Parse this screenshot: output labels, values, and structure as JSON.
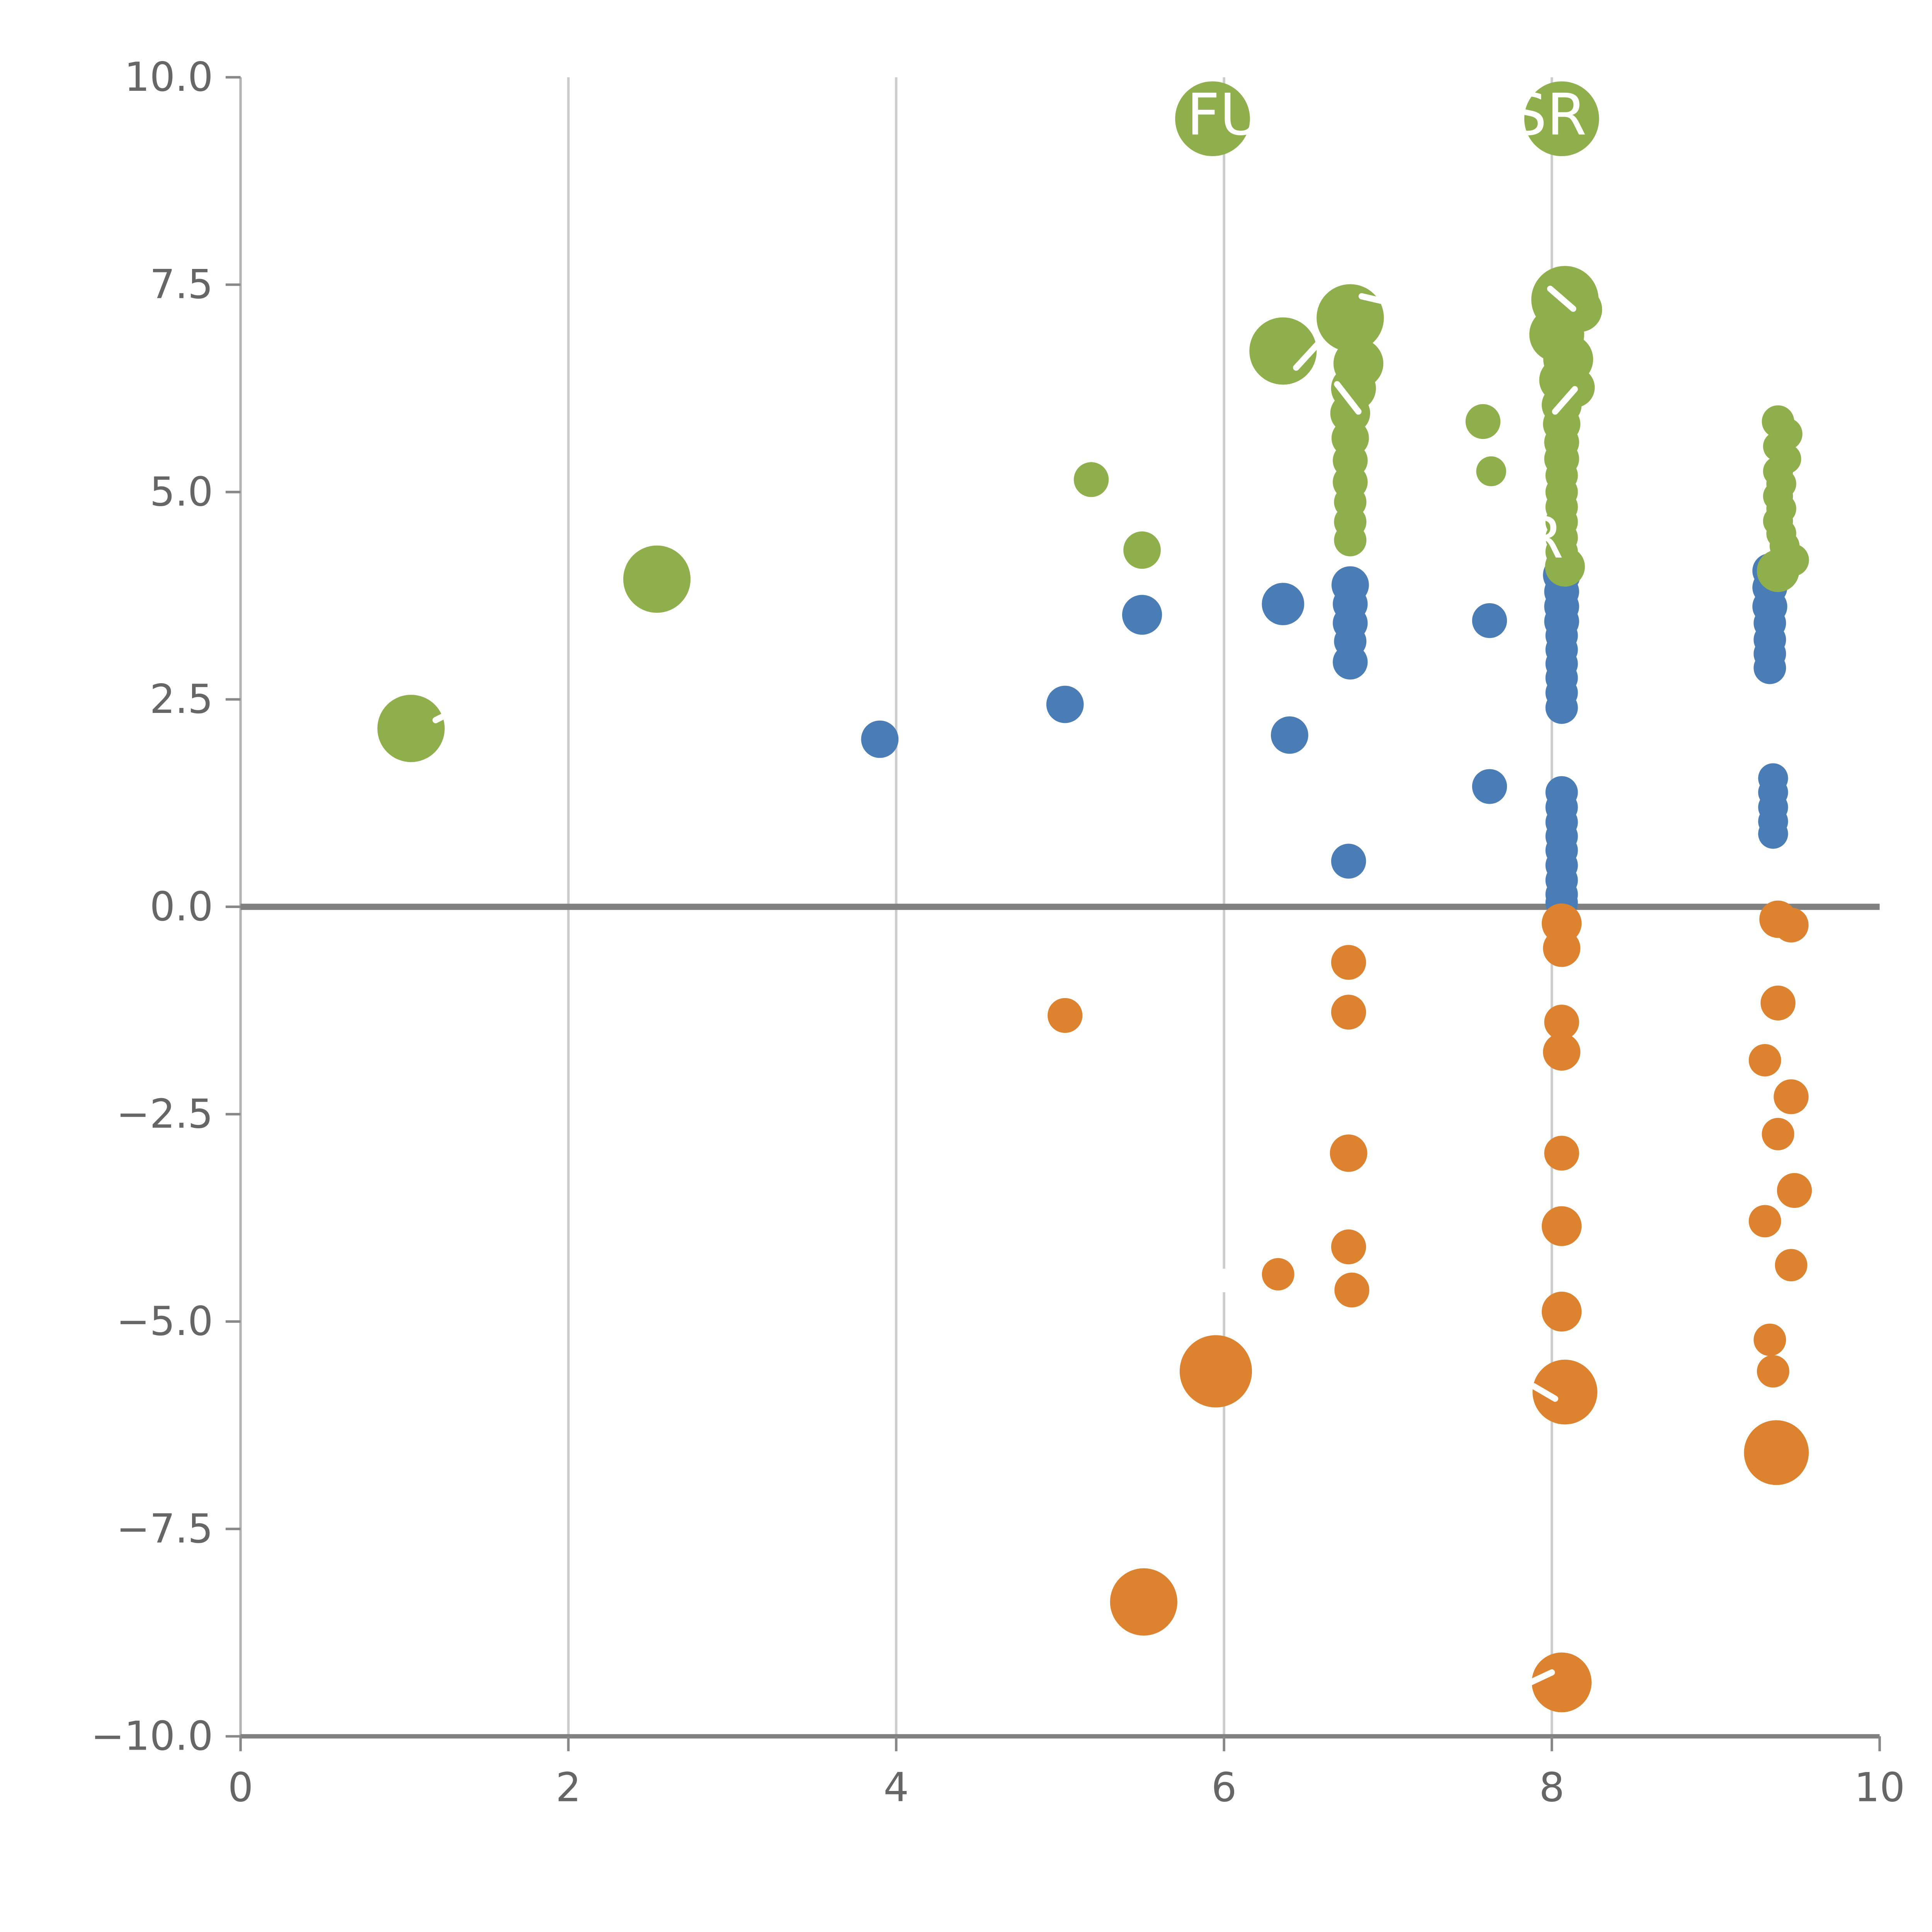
{
  "page": {
    "background": "#ffffff"
  },
  "chart_data": {
    "type": "scatter",
    "title": "",
    "xlabel": "",
    "ylabel": "",
    "xlim": [
      0,
      10
    ],
    "ylim": [
      -10,
      10
    ],
    "xticks": [
      0,
      2,
      4,
      6,
      8,
      10
    ],
    "xtick_labels": [
      "0",
      "2",
      "4",
      "6",
      "8",
      "10"
    ],
    "yticks": [
      -10,
      -7.5,
      -5,
      -2.5,
      0,
      2.5,
      5,
      7.5,
      10
    ],
    "ytick_labels": [
      "−10.0",
      "−7.5",
      "−5.0",
      "−2.5",
      "0.0",
      "2.5",
      "5.0",
      "7.5",
      "10.0"
    ],
    "grid_x": [
      2,
      4,
      6,
      8
    ],
    "zero_line_y": 0,
    "legend": "none",
    "colors": {
      "green": "#8faf4c",
      "blue": "#4a7cb5",
      "orange": "#dd8330",
      "grid": "#cccccc",
      "left_spine": "#b3b3b3",
      "bottom_spine": "#808080",
      "zero_line": "#808080",
      "tick": "#888888",
      "tick_text": "#666666",
      "bubble_label": "#ffffff"
    },
    "series": [
      {
        "name": "blue",
        "color_key": "blue",
        "points": [
          {
            "x": 3.9,
            "y": 2.02,
            "r": 15
          },
          {
            "x": 5.03,
            "y": 2.44,
            "r": 15
          },
          {
            "x": 5.5,
            "y": 3.52,
            "r": 16
          },
          {
            "x": 6.36,
            "y": 3.65,
            "r": 17
          },
          {
            "x": 6.4,
            "y": 2.07,
            "r": 15
          },
          {
            "x": 6.77,
            "y": 3.88,
            "r": 15
          },
          {
            "x": 6.77,
            "y": 3.65,
            "r": 14
          },
          {
            "x": 6.77,
            "y": 3.42,
            "r": 14
          },
          {
            "x": 6.77,
            "y": 3.2,
            "r": 13
          },
          {
            "x": 6.77,
            "y": 2.95,
            "r": 14
          },
          {
            "x": 6.76,
            "y": 0.55,
            "r": 14
          },
          {
            "x": 7.62,
            "y": 3.45,
            "r": 14
          },
          {
            "x": 7.62,
            "y": 1.45,
            "r": 14
          },
          {
            "x": 8.06,
            "y": 4.0,
            "r": 15
          },
          {
            "x": 8.06,
            "y": 3.8,
            "r": 14
          },
          {
            "x": 8.06,
            "y": 3.62,
            "r": 14
          },
          {
            "x": 8.06,
            "y": 3.44,
            "r": 14
          },
          {
            "x": 8.06,
            "y": 3.27,
            "r": 13
          },
          {
            "x": 8.06,
            "y": 3.1,
            "r": 13
          },
          {
            "x": 8.06,
            "y": 2.93,
            "r": 13
          },
          {
            "x": 8.06,
            "y": 2.76,
            "r": 13
          },
          {
            "x": 8.06,
            "y": 2.58,
            "r": 13
          },
          {
            "x": 8.06,
            "y": 2.4,
            "r": 13
          },
          {
            "x": 8.06,
            "y": 1.38,
            "r": 13
          },
          {
            "x": 8.06,
            "y": 1.2,
            "r": 13
          },
          {
            "x": 8.06,
            "y": 1.02,
            "r": 13
          },
          {
            "x": 8.06,
            "y": 0.85,
            "r": 13
          },
          {
            "x": 8.06,
            "y": 0.68,
            "r": 13
          },
          {
            "x": 8.06,
            "y": 0.5,
            "r": 13
          },
          {
            "x": 8.06,
            "y": 0.32,
            "r": 13
          },
          {
            "x": 8.06,
            "y": 0.15,
            "r": 13
          },
          {
            "x": 8.06,
            "y": 0.05,
            "r": 13
          },
          {
            "x": 9.33,
            "y": 4.05,
            "r": 14
          },
          {
            "x": 9.33,
            "y": 3.85,
            "r": 14
          },
          {
            "x": 9.33,
            "y": 3.62,
            "r": 14
          },
          {
            "x": 9.33,
            "y": 3.42,
            "r": 13
          },
          {
            "x": 9.33,
            "y": 3.22,
            "r": 13
          },
          {
            "x": 9.33,
            "y": 3.05,
            "r": 13
          },
          {
            "x": 9.33,
            "y": 2.88,
            "r": 13
          },
          {
            "x": 9.35,
            "y": 1.55,
            "r": 12
          },
          {
            "x": 9.35,
            "y": 1.38,
            "r": 12
          },
          {
            "x": 9.35,
            "y": 1.2,
            "r": 12
          },
          {
            "x": 9.35,
            "y": 1.03,
            "r": 12
          },
          {
            "x": 9.35,
            "y": 0.88,
            "r": 12
          }
        ]
      },
      {
        "name": "orange",
        "color_key": "orange",
        "points": [
          {
            "x": 5.03,
            "y": -1.31,
            "r": 14
          },
          {
            "x": 5.51,
            "y": -8.38,
            "r": 27
          },
          {
            "x": 5.95,
            "y": -5.6,
            "r": 29
          },
          {
            "x": 6.33,
            "y": -4.43,
            "r": 13
          },
          {
            "x": 6.76,
            "y": -0.67,
            "r": 14
          },
          {
            "x": 6.76,
            "y": -1.27,
            "r": 14
          },
          {
            "x": 6.76,
            "y": -2.97,
            "r": 15
          },
          {
            "x": 6.76,
            "y": -4.1,
            "r": 14
          },
          {
            "x": 6.78,
            "y": -4.62,
            "r": 14
          },
          {
            "x": 8.06,
            "y": -0.2,
            "r": 16
          },
          {
            "x": 8.06,
            "y": -0.5,
            "r": 15
          },
          {
            "x": 8.06,
            "y": -1.39,
            "r": 14
          },
          {
            "x": 8.06,
            "y": -1.75,
            "r": 15
          },
          {
            "x": 8.06,
            "y": -2.97,
            "r": 14
          },
          {
            "x": 8.06,
            "y": -3.85,
            "r": 16
          },
          {
            "x": 8.06,
            "y": -4.88,
            "r": 16
          },
          {
            "x": 8.08,
            "y": -5.85,
            "r": 26
          },
          {
            "x": 8.06,
            "y": -9.35,
            "r": 24
          },
          {
            "x": 9.38,
            "y": -0.15,
            "r": 15
          },
          {
            "x": 9.46,
            "y": -0.22,
            "r": 14
          },
          {
            "x": 9.38,
            "y": -1.16,
            "r": 14
          },
          {
            "x": 9.3,
            "y": -1.85,
            "r": 13
          },
          {
            "x": 9.46,
            "y": -2.29,
            "r": 14
          },
          {
            "x": 9.38,
            "y": -2.74,
            "r": 13
          },
          {
            "x": 9.48,
            "y": -3.42,
            "r": 14
          },
          {
            "x": 9.3,
            "y": -3.79,
            "r": 13
          },
          {
            "x": 9.46,
            "y": -4.32,
            "r": 13
          },
          {
            "x": 9.33,
            "y": -5.22,
            "r": 13
          },
          {
            "x": 9.35,
            "y": -5.6,
            "r": 13
          },
          {
            "x": 9.37,
            "y": -6.58,
            "r": 26
          }
        ]
      },
      {
        "name": "green",
        "color_key": "green",
        "points": [
          {
            "x": 1.04,
            "y": 2.15,
            "r": 27
          },
          {
            "x": 2.54,
            "y": 3.95,
            "r": 27
          },
          {
            "x": 5.19,
            "y": 5.15,
            "r": 14
          },
          {
            "x": 5.5,
            "y": 4.3,
            "r": 15
          },
          {
            "x": 5.93,
            "y": 9.5,
            "r": 30
          },
          {
            "x": 6.36,
            "y": 6.7,
            "r": 27
          },
          {
            "x": 6.77,
            "y": 7.1,
            "r": 27
          },
          {
            "x": 6.82,
            "y": 6.55,
            "r": 20
          },
          {
            "x": 6.79,
            "y": 6.25,
            "r": 18
          },
          {
            "x": 6.77,
            "y": 5.95,
            "r": 16
          },
          {
            "x": 6.77,
            "y": 5.65,
            "r": 15
          },
          {
            "x": 6.77,
            "y": 5.38,
            "r": 14
          },
          {
            "x": 6.77,
            "y": 5.12,
            "r": 14
          },
          {
            "x": 6.77,
            "y": 4.88,
            "r": 13
          },
          {
            "x": 6.77,
            "y": 4.64,
            "r": 13
          },
          {
            "x": 6.77,
            "y": 4.42,
            "r": 13
          },
          {
            "x": 7.58,
            "y": 5.85,
            "r": 14
          },
          {
            "x": 7.63,
            "y": 5.25,
            "r": 12
          },
          {
            "x": 8.06,
            "y": 9.5,
            "r": 30
          },
          {
            "x": 8.08,
            "y": 7.32,
            "r": 27
          },
          {
            "x": 8.17,
            "y": 7.2,
            "r": 18
          },
          {
            "x": 8.03,
            "y": 6.9,
            "r": 22
          },
          {
            "x": 8.1,
            "y": 6.6,
            "r": 20
          },
          {
            "x": 8.06,
            "y": 6.35,
            "r": 18
          },
          {
            "x": 8.14,
            "y": 6.26,
            "r": 16
          },
          {
            "x": 8.06,
            "y": 6.05,
            "r": 16
          },
          {
            "x": 8.06,
            "y": 5.82,
            "r": 15
          },
          {
            "x": 8.06,
            "y": 5.6,
            "r": 14
          },
          {
            "x": 8.06,
            "y": 5.4,
            "r": 14
          },
          {
            "x": 8.06,
            "y": 5.2,
            "r": 13
          },
          {
            "x": 8.06,
            "y": 5.0,
            "r": 13
          },
          {
            "x": 8.06,
            "y": 4.82,
            "r": 13
          },
          {
            "x": 8.06,
            "y": 4.64,
            "r": 13
          },
          {
            "x": 8.06,
            "y": 4.45,
            "r": 13
          },
          {
            "x": 8.06,
            "y": 4.28,
            "r": 13
          },
          {
            "x": 8.08,
            "y": 4.1,
            "r": 16
          },
          {
            "x": 9.38,
            "y": 5.85,
            "r": 13
          },
          {
            "x": 9.43,
            "y": 5.7,
            "r": 13
          },
          {
            "x": 9.38,
            "y": 5.55,
            "r": 12
          },
          {
            "x": 9.43,
            "y": 5.4,
            "r": 12
          },
          {
            "x": 9.38,
            "y": 5.25,
            "r": 12
          },
          {
            "x": 9.4,
            "y": 5.1,
            "r": 12
          },
          {
            "x": 9.38,
            "y": 4.95,
            "r": 12
          },
          {
            "x": 9.4,
            "y": 4.8,
            "r": 12
          },
          {
            "x": 9.38,
            "y": 4.65,
            "r": 12
          },
          {
            "x": 9.4,
            "y": 4.5,
            "r": 12
          },
          {
            "x": 9.42,
            "y": 4.35,
            "r": 12
          },
          {
            "x": 9.47,
            "y": 4.18,
            "r": 13
          },
          {
            "x": 9.38,
            "y": 4.05,
            "r": 17
          }
        ]
      }
    ],
    "annotations": {
      "bubble_labels": [
        {
          "text": "FUl",
          "x": 6.05,
          "y": 9.55
        },
        {
          "text": "SR",
          "x": 7.98,
          "y": 9.55
        },
        {
          "text": "R",
          "x": 7.95,
          "y": 4.45
        }
      ],
      "white_marks": [
        {
          "x1": 1.19,
          "y1": 2.25,
          "x2": 1.31,
          "y2": 2.37
        },
        {
          "x1": 6.44,
          "y1": 6.5,
          "x2": 6.57,
          "y2": 6.78
        },
        {
          "x1": 6.84,
          "y1": 7.36,
          "x2": 6.97,
          "y2": 7.3
        },
        {
          "x1": 6.69,
          "y1": 6.3,
          "x2": 6.82,
          "y2": 5.97
        },
        {
          "x1": 7.99,
          "y1": 7.45,
          "x2": 8.13,
          "y2": 7.21
        },
        {
          "x1": 8.02,
          "y1": 5.97,
          "x2": 8.14,
          "y2": 6.24
        },
        {
          "x1": 7.89,
          "y1": -5.78,
          "x2": 8.02,
          "y2": -5.93
        },
        {
          "x1": 7.87,
          "y1": -9.35,
          "x2": 8.0,
          "y2": -9.23
        },
        {
          "x1": 6.0,
          "y1": -4.4,
          "x2": 6.0,
          "y2": -4.61
        }
      ]
    }
  }
}
